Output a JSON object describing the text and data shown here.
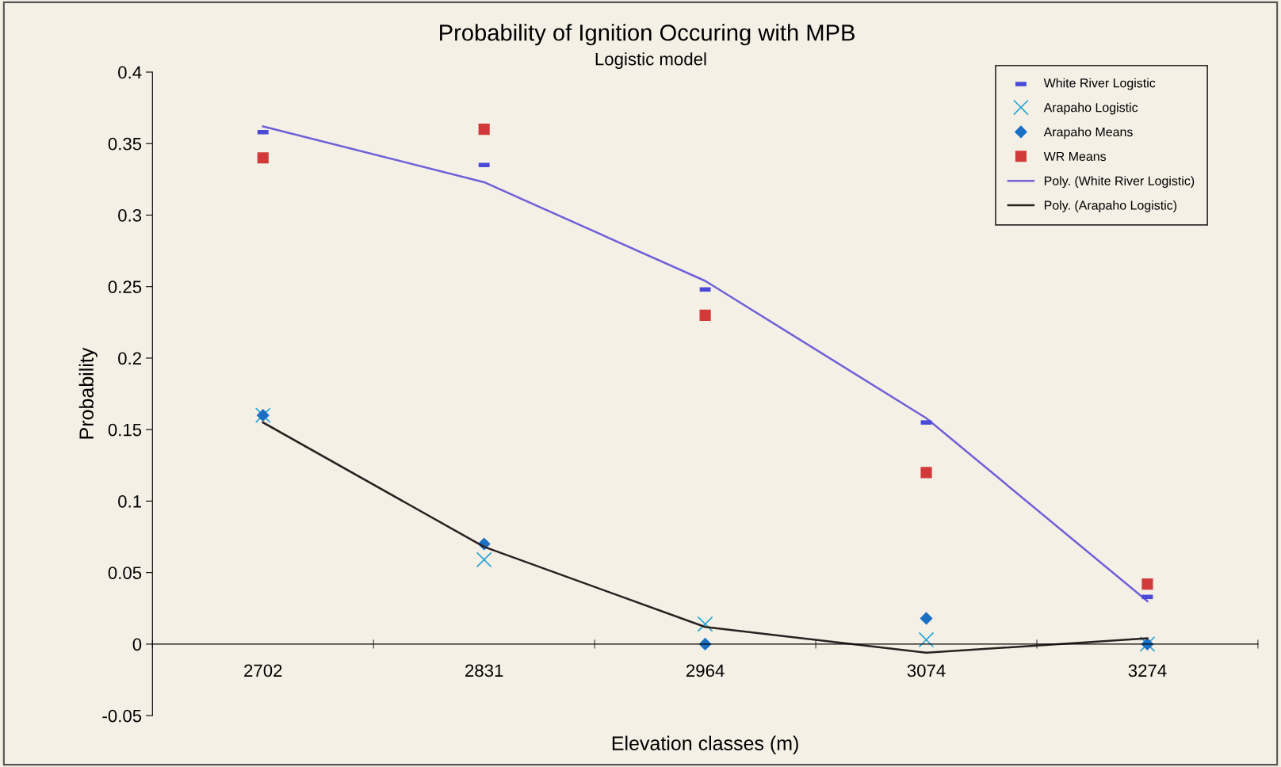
{
  "chart_data": {
    "type": "scatter",
    "title": "Probability of Ignition Occuring with MPB",
    "subtitle": "Logistic model",
    "xlabel": "Elevation classes (m)",
    "ylabel": "Probability",
    "categories": [
      "2702",
      "2831",
      "2964",
      "3074",
      "3274"
    ],
    "ylim": [
      -0.05,
      0.4
    ],
    "yticks": [
      -0.05,
      0,
      0.05,
      0.1,
      0.15,
      0.2,
      0.25,
      0.3,
      0.35,
      0.4
    ],
    "grid": false,
    "legend": "top right",
    "series": [
      {
        "name": "White River Logistic",
        "color": "#4a4ad8",
        "values": [
          0.358,
          0.335,
          0.248,
          0.155,
          0.033
        ]
      },
      {
        "name": "Arapaho Logistic",
        "marker": "cross",
        "color": "#2aa4d4",
        "values": [
          0.16,
          0.059,
          0.014,
          0.003,
          0
        ]
      },
      {
        "name": "Arapaho Means",
        "marker": "diamond",
        "color": "#1a70c4",
        "values": [
          0.16,
          0.07,
          0,
          0.018,
          0
        ]
      },
      {
        "name": "WR Means",
        "marker": "square",
        "color": "#d23a3a",
        "values": [
          0.34,
          0.36,
          0.23,
          0.12,
          0.042
        ]
      },
      {
        "name": "Poly. (White River Logistic)",
        "type": "line",
        "marker": "none",
        "color": "#7060d8",
        "values": [
          0.362,
          0.323,
          0.254,
          0.158,
          0.03
        ]
      },
      {
        "name": "Poly. (Arapaho Logistic)",
        "type": "line",
        "marker": "none",
        "color": "#2a2020",
        "values": [
          0.155,
          0.068,
          0.012,
          -0.006,
          0.004
        ]
      }
    ]
  }
}
